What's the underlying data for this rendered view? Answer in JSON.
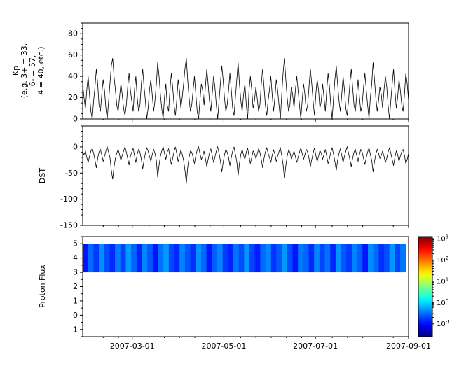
{
  "figure": {
    "bg": "#ffffff",
    "axis_color": "#000000",
    "line_color": "#000000"
  },
  "x_axis": {
    "span_days": 217,
    "tick_days": [
      33,
      94,
      155,
      217
    ],
    "tick_labels": [
      "2007-03-01",
      "2007-05-01",
      "2007-07-01",
      "2007-09-01"
    ]
  },
  "chart_data": [
    {
      "type": "line",
      "ylabel_lines": [
        "Kp",
        "(e.g. 3+ = 33,",
        "6- = 57,",
        "4 = 40, etc.)"
      ],
      "ylim": [
        0,
        90
      ],
      "yticks": [
        0,
        20,
        40,
        60,
        80
      ],
      "y_minor_step": 5,
      "values": [
        33,
        20,
        10,
        27,
        40,
        23,
        7,
        0,
        17,
        30,
        47,
        33,
        13,
        7,
        23,
        37,
        27,
        10,
        0,
        17,
        33,
        50,
        57,
        40,
        27,
        13,
        7,
        20,
        33,
        23,
        10,
        3,
        13,
        30,
        43,
        27,
        17,
        7,
        27,
        40,
        20,
        7,
        13,
        33,
        47,
        30,
        17,
        0,
        10,
        27,
        37,
        23,
        7,
        17,
        33,
        53,
        40,
        23,
        10,
        0,
        20,
        33,
        13,
        7,
        27,
        43,
        30,
        13,
        3,
        17,
        37,
        27,
        10,
        20,
        33,
        47,
        57,
        37,
        20,
        7,
        13,
        27,
        40,
        23,
        7,
        0,
        17,
        33,
        27,
        13,
        30,
        47,
        33,
        17,
        7,
        23,
        40,
        30,
        13,
        0,
        17,
        33,
        50,
        37,
        20,
        7,
        13,
        27,
        43,
        27,
        10,
        3,
        20,
        37,
        53,
        33,
        17,
        7,
        23,
        33,
        13,
        0,
        27,
        40,
        27,
        10,
        17,
        30,
        20,
        7,
        13,
        33,
        47,
        30,
        13,
        3,
        17,
        27,
        40,
        23,
        7,
        20,
        37,
        27,
        13,
        0,
        23,
        43,
        57,
        37,
        20,
        7,
        13,
        30,
        23,
        10,
        27,
        40,
        27,
        13,
        0,
        17,
        33,
        23,
        7,
        13,
        30,
        47,
        33,
        17,
        3,
        23,
        37,
        27,
        10,
        17,
        33,
        20,
        7,
        27,
        43,
        30,
        13,
        0,
        20,
        37,
        50,
        33,
        17,
        7,
        23,
        40,
        27,
        10,
        3,
        17,
        33,
        47,
        30,
        13,
        7,
        23,
        37,
        20,
        7,
        13,
        30,
        43,
        27,
        13,
        0,
        20,
        33,
        53,
        37,
        20,
        7,
        17,
        30,
        23,
        10,
        27,
        40,
        30,
        13,
        0,
        17,
        33,
        47,
        27,
        10,
        20,
        37,
        27,
        13,
        7,
        23,
        43,
        33,
        17
      ]
    },
    {
      "type": "line",
      "ylabel": "DST",
      "ylim": [
        -150,
        40
      ],
      "yticks": [
        0,
        -50,
        -100,
        -150
      ],
      "y_minor_step": 10,
      "values": [
        -10,
        -15,
        -8,
        -20,
        -30,
        -18,
        -8,
        -3,
        -12,
        -25,
        -40,
        -22,
        -10,
        -5,
        -15,
        -28,
        -18,
        -8,
        0,
        -10,
        -20,
        -45,
        -62,
        -38,
        -22,
        -12,
        -5,
        -14,
        -26,
        -16,
        -8,
        0,
        -10,
        -22,
        -35,
        -18,
        -10,
        -3,
        -16,
        -30,
        -14,
        -5,
        -10,
        -24,
        -42,
        -25,
        -12,
        -2,
        -8,
        -18,
        -28,
        -15,
        -5,
        -12,
        -26,
        -58,
        -35,
        -18,
        -8,
        0,
        -12,
        -24,
        -10,
        -4,
        -18,
        -34,
        -22,
        -9,
        0,
        -12,
        -28,
        -18,
        -6,
        -14,
        -26,
        -44,
        -70,
        -40,
        -20,
        -8,
        -10,
        -20,
        -32,
        -16,
        -6,
        0,
        -12,
        -24,
        -18,
        -8,
        -22,
        -38,
        -24,
        -12,
        -4,
        -16,
        -30,
        -20,
        -8,
        0,
        -12,
        -26,
        -48,
        -30,
        -15,
        -5,
        -10,
        -20,
        -36,
        -20,
        -8,
        0,
        -14,
        -28,
        -55,
        -32,
        -14,
        -5,
        -16,
        -24,
        -10,
        -2,
        -18,
        -32,
        -20,
        -8,
        -12,
        -22,
        -14,
        -4,
        -10,
        -24,
        -40,
        -22,
        -10,
        -2,
        -12,
        -20,
        -30,
        -16,
        -6,
        -14,
        -28,
        -18,
        -9,
        -2,
        -16,
        -34,
        -60,
        -36,
        -18,
        -6,
        -10,
        -22,
        -16,
        -8,
        -18,
        -30,
        -20,
        -10,
        -2,
        -12,
        -24,
        -15,
        -5,
        -10,
        -22,
        -38,
        -24,
        -12,
        -2,
        -16,
        -28,
        -18,
        -7,
        -12,
        -24,
        -14,
        -5,
        -18,
        -32,
        -22,
        -10,
        -2,
        -14,
        -28,
        -45,
        -26,
        -12,
        -4,
        -16,
        -30,
        -18,
        -8,
        0,
        -12,
        -24,
        -38,
        -22,
        -10,
        -5,
        -16,
        -28,
        -14,
        -5,
        -10,
        -22,
        -34,
        -20,
        -10,
        -2,
        -14,
        -26,
        -48,
        -28,
        -14,
        -5,
        -12,
        -22,
        -16,
        -8,
        -18,
        -30,
        -22,
        -10,
        -2,
        -12,
        -24,
        -36,
        -20,
        -8,
        -14,
        -28,
        -18,
        -9,
        -5,
        -16,
        -32,
        -24,
        -12
      ]
    },
    {
      "type": "heatmap",
      "ylabel": "Proton Flux",
      "ylim": [
        -1.5,
        5.5
      ],
      "yticks": [
        -1,
        0,
        1,
        2,
        3,
        4,
        5
      ],
      "y_minor_step": 0.5,
      "band_y": [
        3,
        5
      ],
      "band_end_day": 215,
      "values": [
        0.12,
        0.3,
        0.18,
        0.45,
        0.22,
        0.15,
        0.35,
        0.2,
        0.5,
        0.28,
        0.14,
        0.4,
        0.25,
        0.12,
        0.32,
        0.5,
        0.2,
        0.15,
        0.38,
        0.24,
        0.16,
        0.45,
        0.3,
        0.12,
        0.26,
        0.4,
        0.18,
        0.14,
        0.34,
        0.22,
        0.48,
        0.2,
        0.13,
        0.3,
        0.42,
        0.17,
        0.25,
        0.5,
        0.22,
        0.12,
        0.36,
        0.28,
        0.15,
        0.4,
        0.2,
        0.32,
        0.14,
        0.46,
        0.24,
        0.18,
        0.38,
        0.26,
        0.12,
        0.44,
        0.3,
        0.16,
        0.22,
        0.48,
        0.2,
        0.34
      ],
      "colorbar": {
        "tick_base": "10",
        "tick_exponents": [
          -1,
          0,
          1,
          2,
          3
        ],
        "log_domain": [
          -1.6,
          3.1
        ],
        "colormap": "jet"
      }
    }
  ]
}
